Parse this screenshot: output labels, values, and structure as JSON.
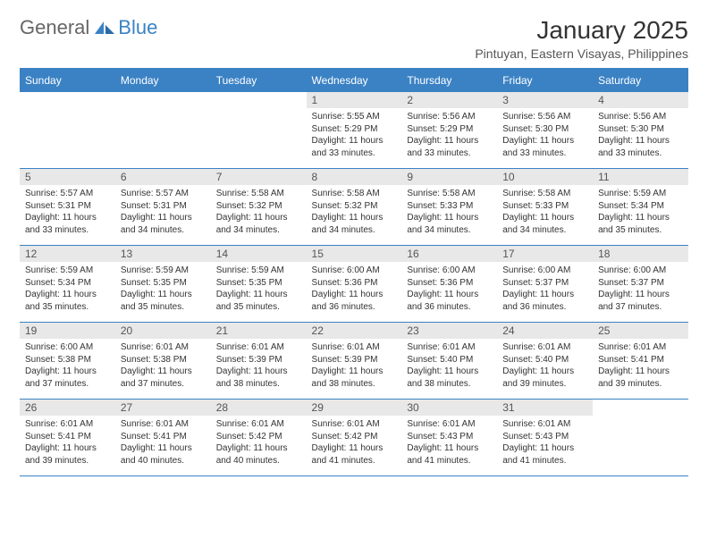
{
  "logo": {
    "text1": "General",
    "text2": "Blue"
  },
  "title": "January 2025",
  "location": "Pintuyan, Eastern Visayas, Philippines",
  "day_headers": [
    "Sunday",
    "Monday",
    "Tuesday",
    "Wednesday",
    "Thursday",
    "Friday",
    "Saturday"
  ],
  "colors": {
    "accent": "#3b82c4",
    "header_bg": "#3b82c4",
    "header_text": "#ffffff",
    "daynum_bg": "#e8e8e8",
    "text": "#333333",
    "background": "#ffffff"
  },
  "weeks": [
    [
      null,
      null,
      null,
      {
        "n": "1",
        "sunrise": "Sunrise: 5:55 AM",
        "sunset": "Sunset: 5:29 PM",
        "daylight1": "Daylight: 11 hours",
        "daylight2": "and 33 minutes."
      },
      {
        "n": "2",
        "sunrise": "Sunrise: 5:56 AM",
        "sunset": "Sunset: 5:29 PM",
        "daylight1": "Daylight: 11 hours",
        "daylight2": "and 33 minutes."
      },
      {
        "n": "3",
        "sunrise": "Sunrise: 5:56 AM",
        "sunset": "Sunset: 5:30 PM",
        "daylight1": "Daylight: 11 hours",
        "daylight2": "and 33 minutes."
      },
      {
        "n": "4",
        "sunrise": "Sunrise: 5:56 AM",
        "sunset": "Sunset: 5:30 PM",
        "daylight1": "Daylight: 11 hours",
        "daylight2": "and 33 minutes."
      }
    ],
    [
      {
        "n": "5",
        "sunrise": "Sunrise: 5:57 AM",
        "sunset": "Sunset: 5:31 PM",
        "daylight1": "Daylight: 11 hours",
        "daylight2": "and 33 minutes."
      },
      {
        "n": "6",
        "sunrise": "Sunrise: 5:57 AM",
        "sunset": "Sunset: 5:31 PM",
        "daylight1": "Daylight: 11 hours",
        "daylight2": "and 34 minutes."
      },
      {
        "n": "7",
        "sunrise": "Sunrise: 5:58 AM",
        "sunset": "Sunset: 5:32 PM",
        "daylight1": "Daylight: 11 hours",
        "daylight2": "and 34 minutes."
      },
      {
        "n": "8",
        "sunrise": "Sunrise: 5:58 AM",
        "sunset": "Sunset: 5:32 PM",
        "daylight1": "Daylight: 11 hours",
        "daylight2": "and 34 minutes."
      },
      {
        "n": "9",
        "sunrise": "Sunrise: 5:58 AM",
        "sunset": "Sunset: 5:33 PM",
        "daylight1": "Daylight: 11 hours",
        "daylight2": "and 34 minutes."
      },
      {
        "n": "10",
        "sunrise": "Sunrise: 5:58 AM",
        "sunset": "Sunset: 5:33 PM",
        "daylight1": "Daylight: 11 hours",
        "daylight2": "and 34 minutes."
      },
      {
        "n": "11",
        "sunrise": "Sunrise: 5:59 AM",
        "sunset": "Sunset: 5:34 PM",
        "daylight1": "Daylight: 11 hours",
        "daylight2": "and 35 minutes."
      }
    ],
    [
      {
        "n": "12",
        "sunrise": "Sunrise: 5:59 AM",
        "sunset": "Sunset: 5:34 PM",
        "daylight1": "Daylight: 11 hours",
        "daylight2": "and 35 minutes."
      },
      {
        "n": "13",
        "sunrise": "Sunrise: 5:59 AM",
        "sunset": "Sunset: 5:35 PM",
        "daylight1": "Daylight: 11 hours",
        "daylight2": "and 35 minutes."
      },
      {
        "n": "14",
        "sunrise": "Sunrise: 5:59 AM",
        "sunset": "Sunset: 5:35 PM",
        "daylight1": "Daylight: 11 hours",
        "daylight2": "and 35 minutes."
      },
      {
        "n": "15",
        "sunrise": "Sunrise: 6:00 AM",
        "sunset": "Sunset: 5:36 PM",
        "daylight1": "Daylight: 11 hours",
        "daylight2": "and 36 minutes."
      },
      {
        "n": "16",
        "sunrise": "Sunrise: 6:00 AM",
        "sunset": "Sunset: 5:36 PM",
        "daylight1": "Daylight: 11 hours",
        "daylight2": "and 36 minutes."
      },
      {
        "n": "17",
        "sunrise": "Sunrise: 6:00 AM",
        "sunset": "Sunset: 5:37 PM",
        "daylight1": "Daylight: 11 hours",
        "daylight2": "and 36 minutes."
      },
      {
        "n": "18",
        "sunrise": "Sunrise: 6:00 AM",
        "sunset": "Sunset: 5:37 PM",
        "daylight1": "Daylight: 11 hours",
        "daylight2": "and 37 minutes."
      }
    ],
    [
      {
        "n": "19",
        "sunrise": "Sunrise: 6:00 AM",
        "sunset": "Sunset: 5:38 PM",
        "daylight1": "Daylight: 11 hours",
        "daylight2": "and 37 minutes."
      },
      {
        "n": "20",
        "sunrise": "Sunrise: 6:01 AM",
        "sunset": "Sunset: 5:38 PM",
        "daylight1": "Daylight: 11 hours",
        "daylight2": "and 37 minutes."
      },
      {
        "n": "21",
        "sunrise": "Sunrise: 6:01 AM",
        "sunset": "Sunset: 5:39 PM",
        "daylight1": "Daylight: 11 hours",
        "daylight2": "and 38 minutes."
      },
      {
        "n": "22",
        "sunrise": "Sunrise: 6:01 AM",
        "sunset": "Sunset: 5:39 PM",
        "daylight1": "Daylight: 11 hours",
        "daylight2": "and 38 minutes."
      },
      {
        "n": "23",
        "sunrise": "Sunrise: 6:01 AM",
        "sunset": "Sunset: 5:40 PM",
        "daylight1": "Daylight: 11 hours",
        "daylight2": "and 38 minutes."
      },
      {
        "n": "24",
        "sunrise": "Sunrise: 6:01 AM",
        "sunset": "Sunset: 5:40 PM",
        "daylight1": "Daylight: 11 hours",
        "daylight2": "and 39 minutes."
      },
      {
        "n": "25",
        "sunrise": "Sunrise: 6:01 AM",
        "sunset": "Sunset: 5:41 PM",
        "daylight1": "Daylight: 11 hours",
        "daylight2": "and 39 minutes."
      }
    ],
    [
      {
        "n": "26",
        "sunrise": "Sunrise: 6:01 AM",
        "sunset": "Sunset: 5:41 PM",
        "daylight1": "Daylight: 11 hours",
        "daylight2": "and 39 minutes."
      },
      {
        "n": "27",
        "sunrise": "Sunrise: 6:01 AM",
        "sunset": "Sunset: 5:41 PM",
        "daylight1": "Daylight: 11 hours",
        "daylight2": "and 40 minutes."
      },
      {
        "n": "28",
        "sunrise": "Sunrise: 6:01 AM",
        "sunset": "Sunset: 5:42 PM",
        "daylight1": "Daylight: 11 hours",
        "daylight2": "and 40 minutes."
      },
      {
        "n": "29",
        "sunrise": "Sunrise: 6:01 AM",
        "sunset": "Sunset: 5:42 PM",
        "daylight1": "Daylight: 11 hours",
        "daylight2": "and 41 minutes."
      },
      {
        "n": "30",
        "sunrise": "Sunrise: 6:01 AM",
        "sunset": "Sunset: 5:43 PM",
        "daylight1": "Daylight: 11 hours",
        "daylight2": "and 41 minutes."
      },
      {
        "n": "31",
        "sunrise": "Sunrise: 6:01 AM",
        "sunset": "Sunset: 5:43 PM",
        "daylight1": "Daylight: 11 hours",
        "daylight2": "and 41 minutes."
      },
      null
    ]
  ]
}
